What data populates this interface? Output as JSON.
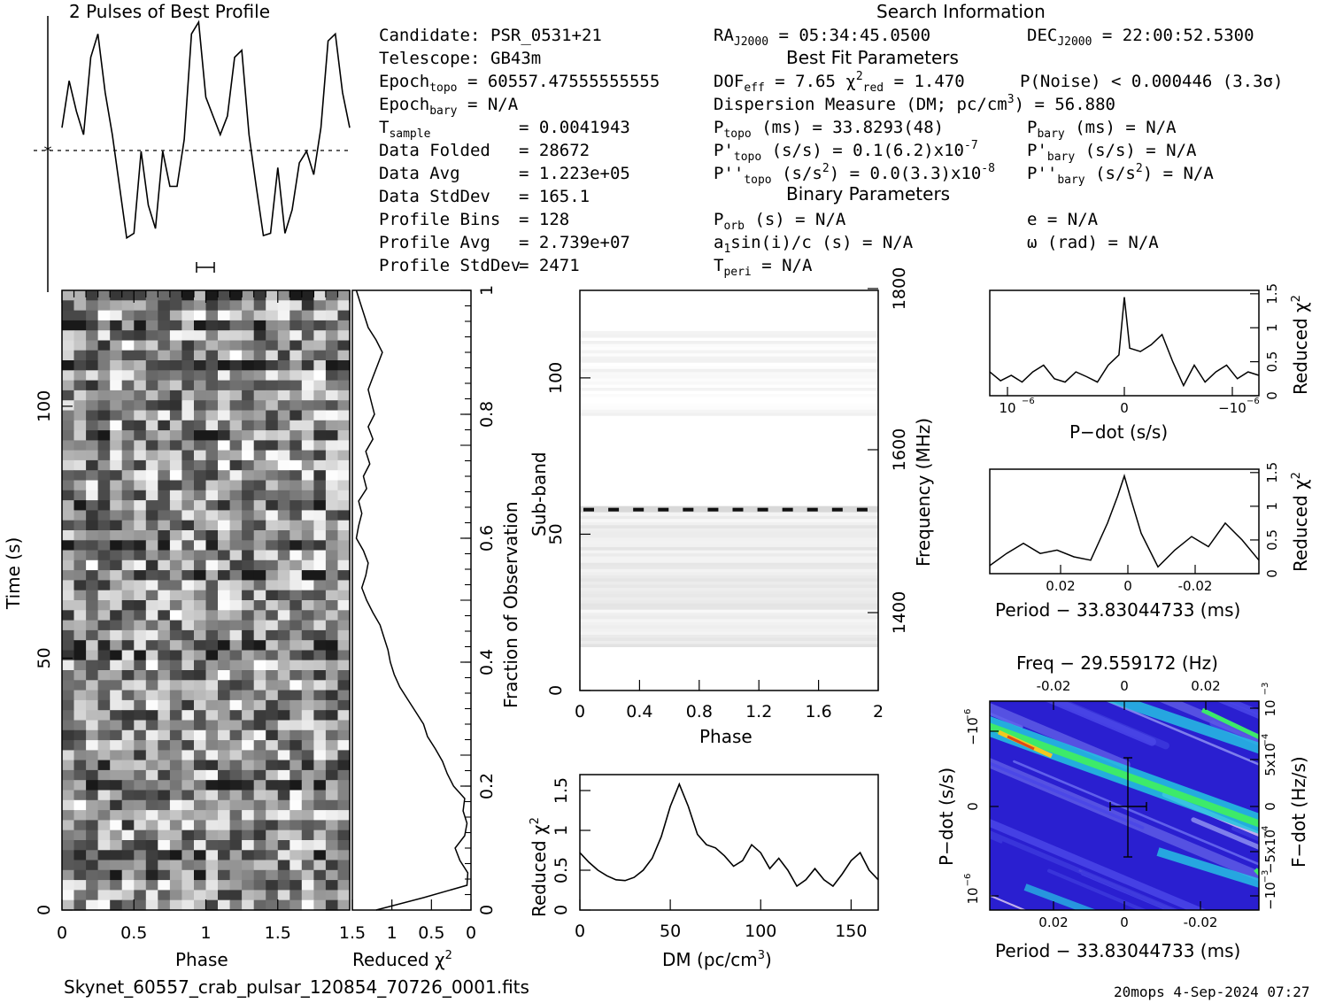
{
  "header": {
    "profile_title": "2 Pulses of Best Profile",
    "search_title": "Search Information",
    "best_fit_title": "Best Fit Parameters",
    "binary_title": "Binary Parameters"
  },
  "info_left": {
    "candidate_label": "Candidate:",
    "candidate": "PSR_0531+21",
    "telescope_label": "Telescope:",
    "telescope": "GB43m",
    "epoch_topo_label": "Epoch",
    "epoch_topo_sub": "topo",
    "epoch_topo": "= 60557.47555555555",
    "epoch_bary_label": "Epoch",
    "epoch_bary_sub": "bary",
    "epoch_bary": "= N/A",
    "tsample_label": "T",
    "tsample_sub": "sample",
    "tsample": "=  0.0041943",
    "data_folded_label": "Data Folded",
    "data_folded": "=  28672",
    "data_avg_label": "Data Avg",
    "data_avg": "=  1.223e+05",
    "data_std_label": "Data StdDev",
    "data_std": "=  165.1",
    "profile_bins_label": "Profile Bins",
    "profile_bins": "=  128",
    "profile_avg_label": "Profile Avg",
    "profile_avg": "=  2.739e+07",
    "profile_std_label": "Profile StdDev",
    "profile_std": "=  2471"
  },
  "info_mid": {
    "ra_label": "RA",
    "ra_sub": "J2000",
    "ra": "= 05:34:45.0500",
    "dof_label": "DOF",
    "dof_sub": "eff",
    "dof": "= 7.65",
    "chi2_label": "χ",
    "chi2_sub": "red",
    "chi2": "= 1.470",
    "pnoise": "P(Noise) < 0.000446  (3.3σ)",
    "dm": "Dispersion Measure (DM; pc/cm",
    "dm_value": ") = 56.880",
    "ptopo_label": "P",
    "ptopo_sub": "topo",
    "ptopo": "(ms) =  33.8293(48)",
    "pdtopo_label": "P'",
    "pdtopo_sub": "topo",
    "pdtopo": "(s/s) =  0.1(6.2)x10",
    "pdtopo_exp": "-7",
    "pddtopo_label": "P''",
    "pddtopo_sub": "topo",
    "pddtopo": "(s/s",
    "pddtopo_val": ") = 0.0(3.3)x10",
    "pddtopo_exp": "-8",
    "porb_label": "P",
    "porb_sub": "orb",
    "porb": "(s) = N/A",
    "a1_label": "a",
    "a1_sub": "1",
    "a1": "sin(i)/c (s) = N/A",
    "tperi_label": "T",
    "tperi_sub": "peri",
    "tperi": "= N/A"
  },
  "info_right": {
    "dec_label": "DEC",
    "dec_sub": "J2000",
    "dec": "= 22:00:52.5300",
    "pbary_label": "P",
    "pbary_sub": "bary",
    "pbary": "(ms) = N/A",
    "pdbary_label": "P'",
    "pdbary_sub": "bary",
    "pdbary": "(s/s) = N/A",
    "pddbary_label": "P''",
    "pddbary_sub": "bary",
    "pddbary": "(s/s",
    "pddbary_val": ") = N/A",
    "e": "e = N/A",
    "omega": "ω (rad) = N/A"
  },
  "footer": {
    "filename": "Skynet_60557_crab_pulsar_120854_70726_0001.fits",
    "stamp": "20mops  4-Sep-2024 07:27"
  },
  "chart_data": [
    {
      "name": "profile",
      "type": "line",
      "title": "2 Pulses of Best Profile",
      "x": [
        0,
        0.05,
        0.1,
        0.15,
        0.2,
        0.25,
        0.3,
        0.35,
        0.4,
        0.45,
        0.5,
        0.55,
        0.6,
        0.65,
        0.7,
        0.75,
        0.8,
        0.85,
        0.9,
        0.95,
        1,
        1.05,
        1.1,
        1.15,
        1.2,
        1.25,
        1.3,
        1.35,
        1.4,
        1.45,
        1.5,
        1.55,
        1.6,
        1.65,
        1.7,
        1.75,
        1.8,
        1.85,
        1.9,
        1.95,
        2
      ],
      "y": [
        0.55,
        0.75,
        0.62,
        0.52,
        0.85,
        0.95,
        0.7,
        0.52,
        0.3,
        0.08,
        0.1,
        0.45,
        0.22,
        0.12,
        0.45,
        0.3,
        0.3,
        0.5,
        0.95,
        1.0,
        0.68,
        0.6,
        0.52,
        0.6,
        0.85,
        0.88,
        0.52,
        0.3,
        0.09,
        0.1,
        0.38,
        0.1,
        0.2,
        0.4,
        0.45,
        0.35,
        0.55,
        0.92,
        0.95,
        0.7,
        0.55
      ]
    },
    {
      "name": "time-phase",
      "type": "heatmap",
      "xlabel": "Phase",
      "ylabel": "Time (s)",
      "xticks": [
        0,
        0.5,
        1,
        1.5
      ],
      "yticks": [
        0,
        50,
        100
      ],
      "xlim": [
        0,
        2
      ],
      "ylim": [
        0,
        123
      ]
    },
    {
      "name": "chi2-vs-time",
      "type": "line",
      "xlabel": "Reduced χ",
      "ylabel": "Fraction of Observation",
      "xticks": [
        1.5,
        1,
        0.5,
        0
      ],
      "yticks": [
        0,
        0.2,
        0.4,
        0.6,
        0.8,
        1
      ],
      "xlim": [
        1.5,
        0
      ],
      "ylim": [
        0,
        1
      ],
      "frac": [
        0,
        0.02,
        0.04,
        0.06,
        0.08,
        0.1,
        0.12,
        0.14,
        0.16,
        0.18,
        0.2,
        0.22,
        0.24,
        0.26,
        0.28,
        0.3,
        0.32,
        0.34,
        0.36,
        0.38,
        0.4,
        0.42,
        0.44,
        0.46,
        0.48,
        0.5,
        0.52,
        0.54,
        0.56,
        0.58,
        0.6,
        0.62,
        0.64,
        0.66,
        0.68,
        0.7,
        0.72,
        0.74,
        0.76,
        0.78,
        0.8,
        0.82,
        0.84,
        0.86,
        0.88,
        0.9,
        0.92,
        0.94,
        0.96,
        0.98,
        1
      ],
      "chi2": [
        1.2,
        0.6,
        0.05,
        0.04,
        0.14,
        0.2,
        0.08,
        0.05,
        0.1,
        0.08,
        0.22,
        0.3,
        0.36,
        0.45,
        0.55,
        0.6,
        0.7,
        0.8,
        0.9,
        0.97,
        1.02,
        1.05,
        1.1,
        1.15,
        1.24,
        1.32,
        1.38,
        1.33,
        1.3,
        1.36,
        1.45,
        1.42,
        1.38,
        1.42,
        1.32,
        1.36,
        1.28,
        1.33,
        1.24,
        1.3,
        1.22,
        1.26,
        1.3,
        1.24,
        1.18,
        1.12,
        1.2,
        1.3,
        1.35,
        1.4,
        1.45
      ]
    },
    {
      "name": "subband-phase",
      "type": "heatmap",
      "xlabel": "Phase",
      "ylabel": "Sub-band",
      "y2label": "Frequency (MHz)",
      "xticks": [
        0,
        0.4,
        0.8,
        1.2,
        1.6,
        2
      ],
      "yticks": [
        0,
        50,
        100
      ],
      "y2ticks": [
        1400,
        1600,
        1800
      ],
      "xlim": [
        0,
        2
      ],
      "ylim": [
        0,
        128
      ],
      "bands": [
        {
          "y0": 14,
          "y1": 57,
          "shade": "light"
        },
        {
          "y0": 57,
          "y1": 59,
          "shade": "dark"
        },
        {
          "y0": 88,
          "y1": 115,
          "shade": "faint"
        }
      ]
    },
    {
      "name": "chi2-vs-dm",
      "type": "line",
      "xlabel": "DM (pc/cm",
      "ylabel": "Reduced χ",
      "xticks": [
        0,
        50,
        100,
        150
      ],
      "yticks": [
        0,
        0.5,
        1,
        1.5
      ],
      "xlim": [
        0,
        165
      ],
      "ylim": [
        0,
        1.7
      ],
      "x": [
        0,
        5,
        10,
        15,
        20,
        25,
        30,
        35,
        40,
        45,
        50,
        55,
        60,
        65,
        70,
        75,
        80,
        85,
        90,
        95,
        100,
        105,
        110,
        115,
        120,
        125,
        130,
        135,
        140,
        145,
        150,
        155,
        160,
        165
      ],
      "y": [
        0.72,
        0.6,
        0.5,
        0.43,
        0.38,
        0.37,
        0.41,
        0.5,
        0.65,
        0.92,
        1.3,
        1.58,
        1.3,
        0.95,
        0.82,
        0.78,
        0.68,
        0.55,
        0.62,
        0.82,
        0.72,
        0.52,
        0.65,
        0.5,
        0.3,
        0.38,
        0.52,
        0.38,
        0.3,
        0.45,
        0.62,
        0.72,
        0.5,
        0.38
      ]
    },
    {
      "name": "chi2-vs-pdot",
      "type": "line",
      "xlabel": "P−dot (s/s)",
      "ylabel": "Reduced χ",
      "xtick_labels": [
        "10",
        "0",
        "−10"
      ],
      "xtick_exp": "−6",
      "yticks": [
        0,
        0.5,
        1,
        1.5
      ],
      "ylim": [
        0,
        1.55
      ],
      "x": [
        -1.25,
        -1.15,
        -1.05,
        -0.95,
        -0.85,
        -0.75,
        -0.65,
        -0.55,
        -0.45,
        -0.35,
        -0.25,
        -0.15,
        -0.05,
        0,
        0.05,
        0.15,
        0.25,
        0.35,
        0.45,
        0.55,
        0.65,
        0.75,
        0.85,
        0.95,
        1.05,
        1.15,
        1.25
      ],
      "y": [
        0.35,
        0.22,
        0.3,
        0.2,
        0.35,
        0.45,
        0.25,
        0.2,
        0.35,
        0.28,
        0.2,
        0.45,
        0.6,
        1.45,
        0.7,
        0.65,
        0.75,
        0.9,
        0.5,
        0.15,
        0.45,
        0.2,
        0.35,
        0.45,
        0.25,
        0.35,
        0.3
      ]
    },
    {
      "name": "chi2-vs-period",
      "type": "line",
      "xlabel": "Period − 33.83044733 (ms)",
      "ylabel": "Reduced χ",
      "xticks": [
        0.02,
        0,
        -0.02
      ],
      "yticks": [
        0,
        0.5,
        1,
        1.5
      ],
      "ylim": [
        0,
        1.55
      ],
      "x": [
        0.04,
        0.035,
        0.03,
        0.025,
        0.02,
        0.015,
        0.01,
        0.005,
        0.002,
        0,
        -0.002,
        -0.005,
        -0.01,
        -0.015,
        -0.02,
        -0.025,
        -0.03,
        -0.035,
        -0.04
      ],
      "y": [
        0.12,
        0.3,
        0.45,
        0.3,
        0.35,
        0.25,
        0.2,
        0.75,
        1.15,
        1.45,
        1.1,
        0.6,
        0.1,
        0.35,
        0.55,
        0.4,
        0.75,
        0.5,
        0.2
      ]
    },
    {
      "name": "period-pdot",
      "type": "heatmap",
      "title": "Freq − 29.559172 (Hz)",
      "xlabel": "Period − 33.83044733 (ms)",
      "ylabel": "P−dot (s/s)",
      "y2label": "F−dot (Hz/s)",
      "top_ticks": [
        -0.02,
        0,
        0.02
      ],
      "bottom_ticks": [
        0.02,
        0,
        -0.02
      ],
      "left_tick_labels": [
        "−10",
        "0",
        "10"
      ],
      "left_tick_exp": "−6",
      "right_tick_labels": [
        "10",
        "5x10",
        "0",
        "−5x10",
        "−10"
      ],
      "right_tick_exps": [
        "−3",
        "−4",
        "",
        "−4",
        "−3"
      ]
    }
  ]
}
